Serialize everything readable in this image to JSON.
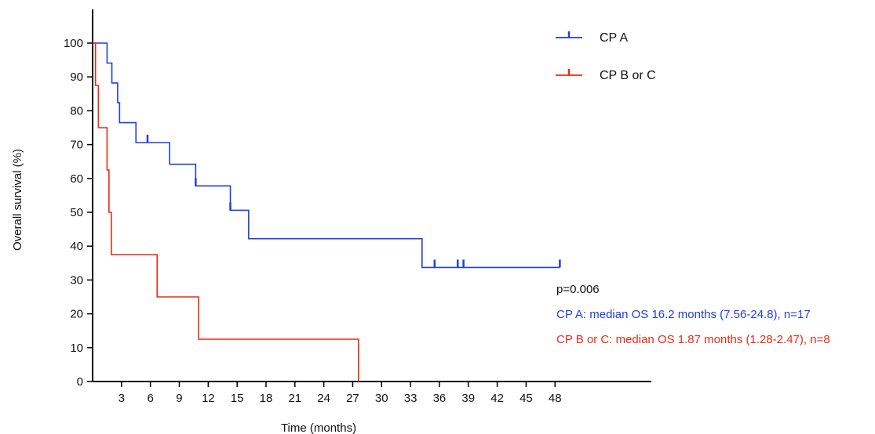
{
  "chart_data": {
    "type": "line",
    "subtype": "kaplan-meier",
    "title": "",
    "xlabel": "Time (months)",
    "ylabel": "Overall survival (%)",
    "xlim": [
      0,
      58
    ],
    "ylim": [
      0,
      100
    ],
    "xticks": [
      3,
      6,
      9,
      12,
      15,
      18,
      21,
      24,
      27,
      30,
      33,
      36,
      39,
      42,
      45,
      48
    ],
    "yticks": [
      0,
      10,
      20,
      30,
      40,
      50,
      60,
      70,
      80,
      90,
      100
    ],
    "grid": false,
    "legend_position": "top-right",
    "series": [
      {
        "name": "CP A",
        "color": "#1f3fe0",
        "steps": [
          [
            0,
            100
          ],
          [
            1.5,
            94.1
          ],
          [
            2.0,
            88.2
          ],
          [
            2.6,
            82.4
          ],
          [
            2.8,
            76.5
          ],
          [
            4.5,
            70.6
          ],
          [
            8.0,
            64.2
          ],
          [
            10.7,
            57.8
          ],
          [
            14.3,
            50.6
          ],
          [
            16.2,
            42.2
          ],
          [
            34.2,
            33.7
          ],
          [
            48.5,
            33.7
          ]
        ],
        "censored": [
          [
            5.7,
            70.6
          ],
          [
            10.7,
            57.8
          ],
          [
            14.3,
            50.6
          ],
          [
            35.5,
            33.7
          ],
          [
            37.9,
            33.7
          ],
          [
            38.5,
            33.7
          ],
          [
            48.5,
            33.7
          ]
        ]
      },
      {
        "name": "CP B or C",
        "color": "#ee2a12",
        "steps": [
          [
            0,
            100
          ],
          [
            0.3,
            87.5
          ],
          [
            0.6,
            75.0
          ],
          [
            1.5,
            62.5
          ],
          [
            1.7,
            50.0
          ],
          [
            1.95,
            37.5
          ],
          [
            6.7,
            25.0
          ],
          [
            11.0,
            12.5
          ],
          [
            27.6,
            0
          ]
        ],
        "censored": []
      }
    ],
    "annotations": [
      {
        "text": "p=0.006",
        "color": "#111111"
      },
      {
        "text": "CP A: median OS 16.2 months (7.56-24.8), n=17",
        "color": "#1f3fe0"
      },
      {
        "text": "CP B or C: median OS 1.87 months (1.28-2.47), n=8",
        "color": "#ee2a12"
      }
    ]
  }
}
